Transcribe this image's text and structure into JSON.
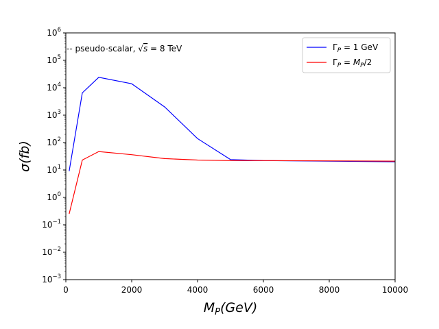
{
  "chart_data": {
    "type": "line",
    "title": "",
    "annotation": "-- pseudo-scalar, √s = 8 TeV",
    "xlabel": "M_P(GeV)",
    "ylabel": "σ(fb)",
    "xscale": "linear",
    "yscale": "log",
    "xlim": [
      0,
      10000
    ],
    "ylim": [
      0.001,
      1000000
    ],
    "xticks": [
      0,
      2000,
      4000,
      6000,
      8000,
      10000
    ],
    "xtick_labels": [
      "0",
      "2000",
      "4000",
      "6000",
      "8000",
      "10000"
    ],
    "yticks": [
      0.001,
      0.01,
      0.1,
      1,
      10,
      100,
      1000,
      10000,
      100000,
      1000000
    ],
    "ytick_exponents": [
      "−3",
      "−2",
      "−1",
      "0",
      "1",
      "2",
      "3",
      "4",
      "5",
      "6"
    ],
    "ytick_base": "10",
    "grid": false,
    "legend_position": "top-right",
    "series": [
      {
        "name": "Γ_P = 1 GeV",
        "color": "#0000ff",
        "x": [
          100,
          500,
          1000,
          2000,
          3000,
          4000,
          5000,
          6000,
          10000
        ],
        "y": [
          9,
          6500,
          24000,
          14000,
          2000,
          140,
          24,
          22,
          20
        ]
      },
      {
        "name": "Γ_P = M_P/2",
        "color": "#ff0000",
        "x": [
          100,
          500,
          1000,
          2000,
          3000,
          4000,
          5000,
          6000,
          10000
        ],
        "y": [
          0.25,
          23,
          47,
          36,
          26,
          23,
          22,
          22,
          21
        ]
      }
    ]
  }
}
